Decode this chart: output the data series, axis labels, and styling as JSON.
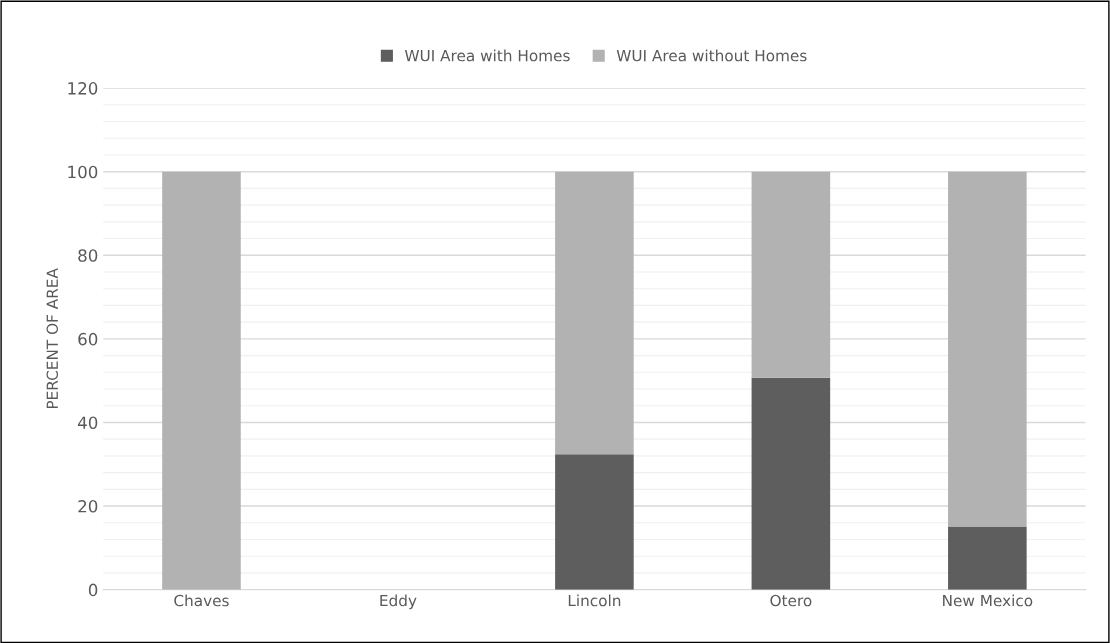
{
  "chart_data": {
    "type": "bar",
    "stacked": true,
    "ylabel": "PERCENT OF AREA",
    "categories": [
      "Chaves",
      "Eddy",
      "Lincoln",
      "Otero",
      "New Mexico"
    ],
    "series": [
      {
        "name": "WUI Area with Homes",
        "color": "#5e5e5e",
        "values": [
          0,
          null,
          32.4,
          50.7,
          15.1
        ]
      },
      {
        "name": "WUI Area without Homes",
        "color": "#b2b2b2",
        "values": [
          100,
          null,
          67.6,
          49.3,
          84.9
        ]
      }
    ],
    "ylim": [
      0,
      120
    ],
    "yticks": [
      0,
      20,
      40,
      60,
      80,
      100,
      120
    ],
    "grid": "y",
    "legend": "top"
  }
}
